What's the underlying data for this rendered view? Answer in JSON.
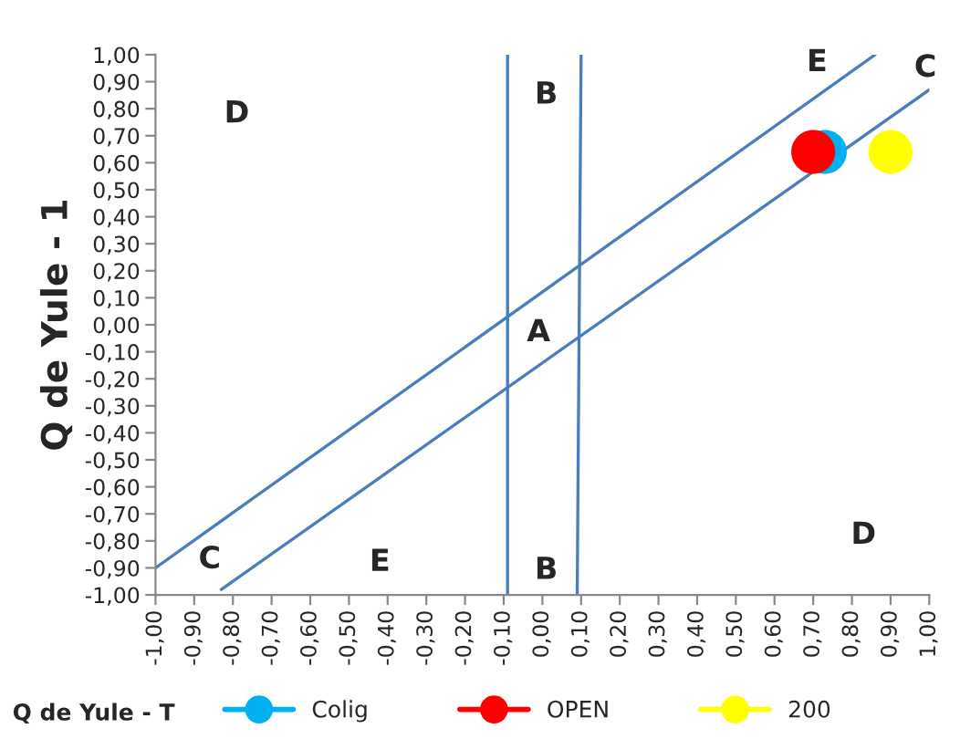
{
  "chart_data": {
    "type": "scatter",
    "xlabel": "Q de Yule - T",
    "ylabel": "Q de Yule - 1",
    "xlim": [
      -1.0,
      1.0
    ],
    "ylim": [
      -1.0,
      1.0
    ],
    "xticks": [
      {
        "value": -1.0,
        "label": "-1,00"
      },
      {
        "value": -0.9,
        "label": "-0,90"
      },
      {
        "value": -0.8,
        "label": "-0,80"
      },
      {
        "value": -0.7,
        "label": "-0,70"
      },
      {
        "value": -0.6,
        "label": "-0,60"
      },
      {
        "value": -0.5,
        "label": "-0,50"
      },
      {
        "value": -0.4,
        "label": "-0,40"
      },
      {
        "value": -0.3,
        "label": "-0,30"
      },
      {
        "value": -0.2,
        "label": "-0,20"
      },
      {
        "value": -0.1,
        "label": "-0,10"
      },
      {
        "value": 0.0,
        "label": "0,00"
      },
      {
        "value": 0.1,
        "label": "0,10"
      },
      {
        "value": 0.2,
        "label": "0,20"
      },
      {
        "value": 0.3,
        "label": "0,30"
      },
      {
        "value": 0.4,
        "label": "0,40"
      },
      {
        "value": 0.5,
        "label": "0,50"
      },
      {
        "value": 0.6,
        "label": "0,60"
      },
      {
        "value": 0.7,
        "label": "0,70"
      },
      {
        "value": 0.8,
        "label": "0,80"
      },
      {
        "value": 0.9,
        "label": "0,90"
      },
      {
        "value": 1.0,
        "label": "1,00"
      }
    ],
    "yticks": [
      {
        "value": -1.0,
        "label": "-1,00"
      },
      {
        "value": -0.9,
        "label": "-0,90"
      },
      {
        "value": -0.8,
        "label": "-0,80"
      },
      {
        "value": -0.7,
        "label": "-0,70"
      },
      {
        "value": -0.6,
        "label": "-0,60"
      },
      {
        "value": -0.5,
        "label": "-0,50"
      },
      {
        "value": -0.4,
        "label": "-0,40"
      },
      {
        "value": -0.3,
        "label": "-0,30"
      },
      {
        "value": -0.2,
        "label": "-0,20"
      },
      {
        "value": -0.1,
        "label": "-0,10"
      },
      {
        "value": 0.0,
        "label": "0,00"
      },
      {
        "value": 0.1,
        "label": "0,10"
      },
      {
        "value": 0.2,
        "label": "0,20"
      },
      {
        "value": 0.3,
        "label": "0,30"
      },
      {
        "value": 0.4,
        "label": "0,40"
      },
      {
        "value": 0.5,
        "label": "0,50"
      },
      {
        "value": 0.6,
        "label": "0,60"
      },
      {
        "value": 0.7,
        "label": "0,70"
      },
      {
        "value": 0.8,
        "label": "0,80"
      },
      {
        "value": 0.9,
        "label": "0,90"
      },
      {
        "value": 1.0,
        "label": "1,00"
      }
    ],
    "series": [
      {
        "type": "line",
        "marker": "none",
        "color": "#4a7ebb",
        "x": [
          -1.0,
          0.86
        ],
        "values": [
          -0.9,
          1.0
        ]
      },
      {
        "type": "line",
        "marker": "none",
        "color": "#4a7ebb",
        "x": [
          -0.83,
          1.0
        ],
        "values": [
          -0.98,
          0.87
        ]
      },
      {
        "type": "line",
        "marker": "none",
        "color": "#4a7ebb",
        "x": [
          -0.09,
          -0.09
        ],
        "values": [
          -1.0,
          1.0
        ]
      },
      {
        "type": "line",
        "marker": "none",
        "color": "#4a7ebb",
        "x": [
          0.09,
          0.1
        ],
        "values": [
          -1.0,
          1.0
        ]
      },
      {
        "name": "Colig",
        "color": "#00b0f0",
        "x": [
          0.73
        ],
        "values": [
          0.64
        ]
      },
      {
        "name": "OPEN",
        "color": "#ff0000",
        "x": [
          0.7
        ],
        "values": [
          0.64
        ]
      },
      {
        "name": "200",
        "color": "#ffff00",
        "x": [
          0.9
        ],
        "values": [
          0.64
        ]
      }
    ],
    "marker": "circle",
    "grid": false,
    "legend": "bottom",
    "annotations": [
      "D",
      "B",
      "E",
      "C",
      "A",
      "C",
      "E",
      "B",
      "D"
    ]
  }
}
